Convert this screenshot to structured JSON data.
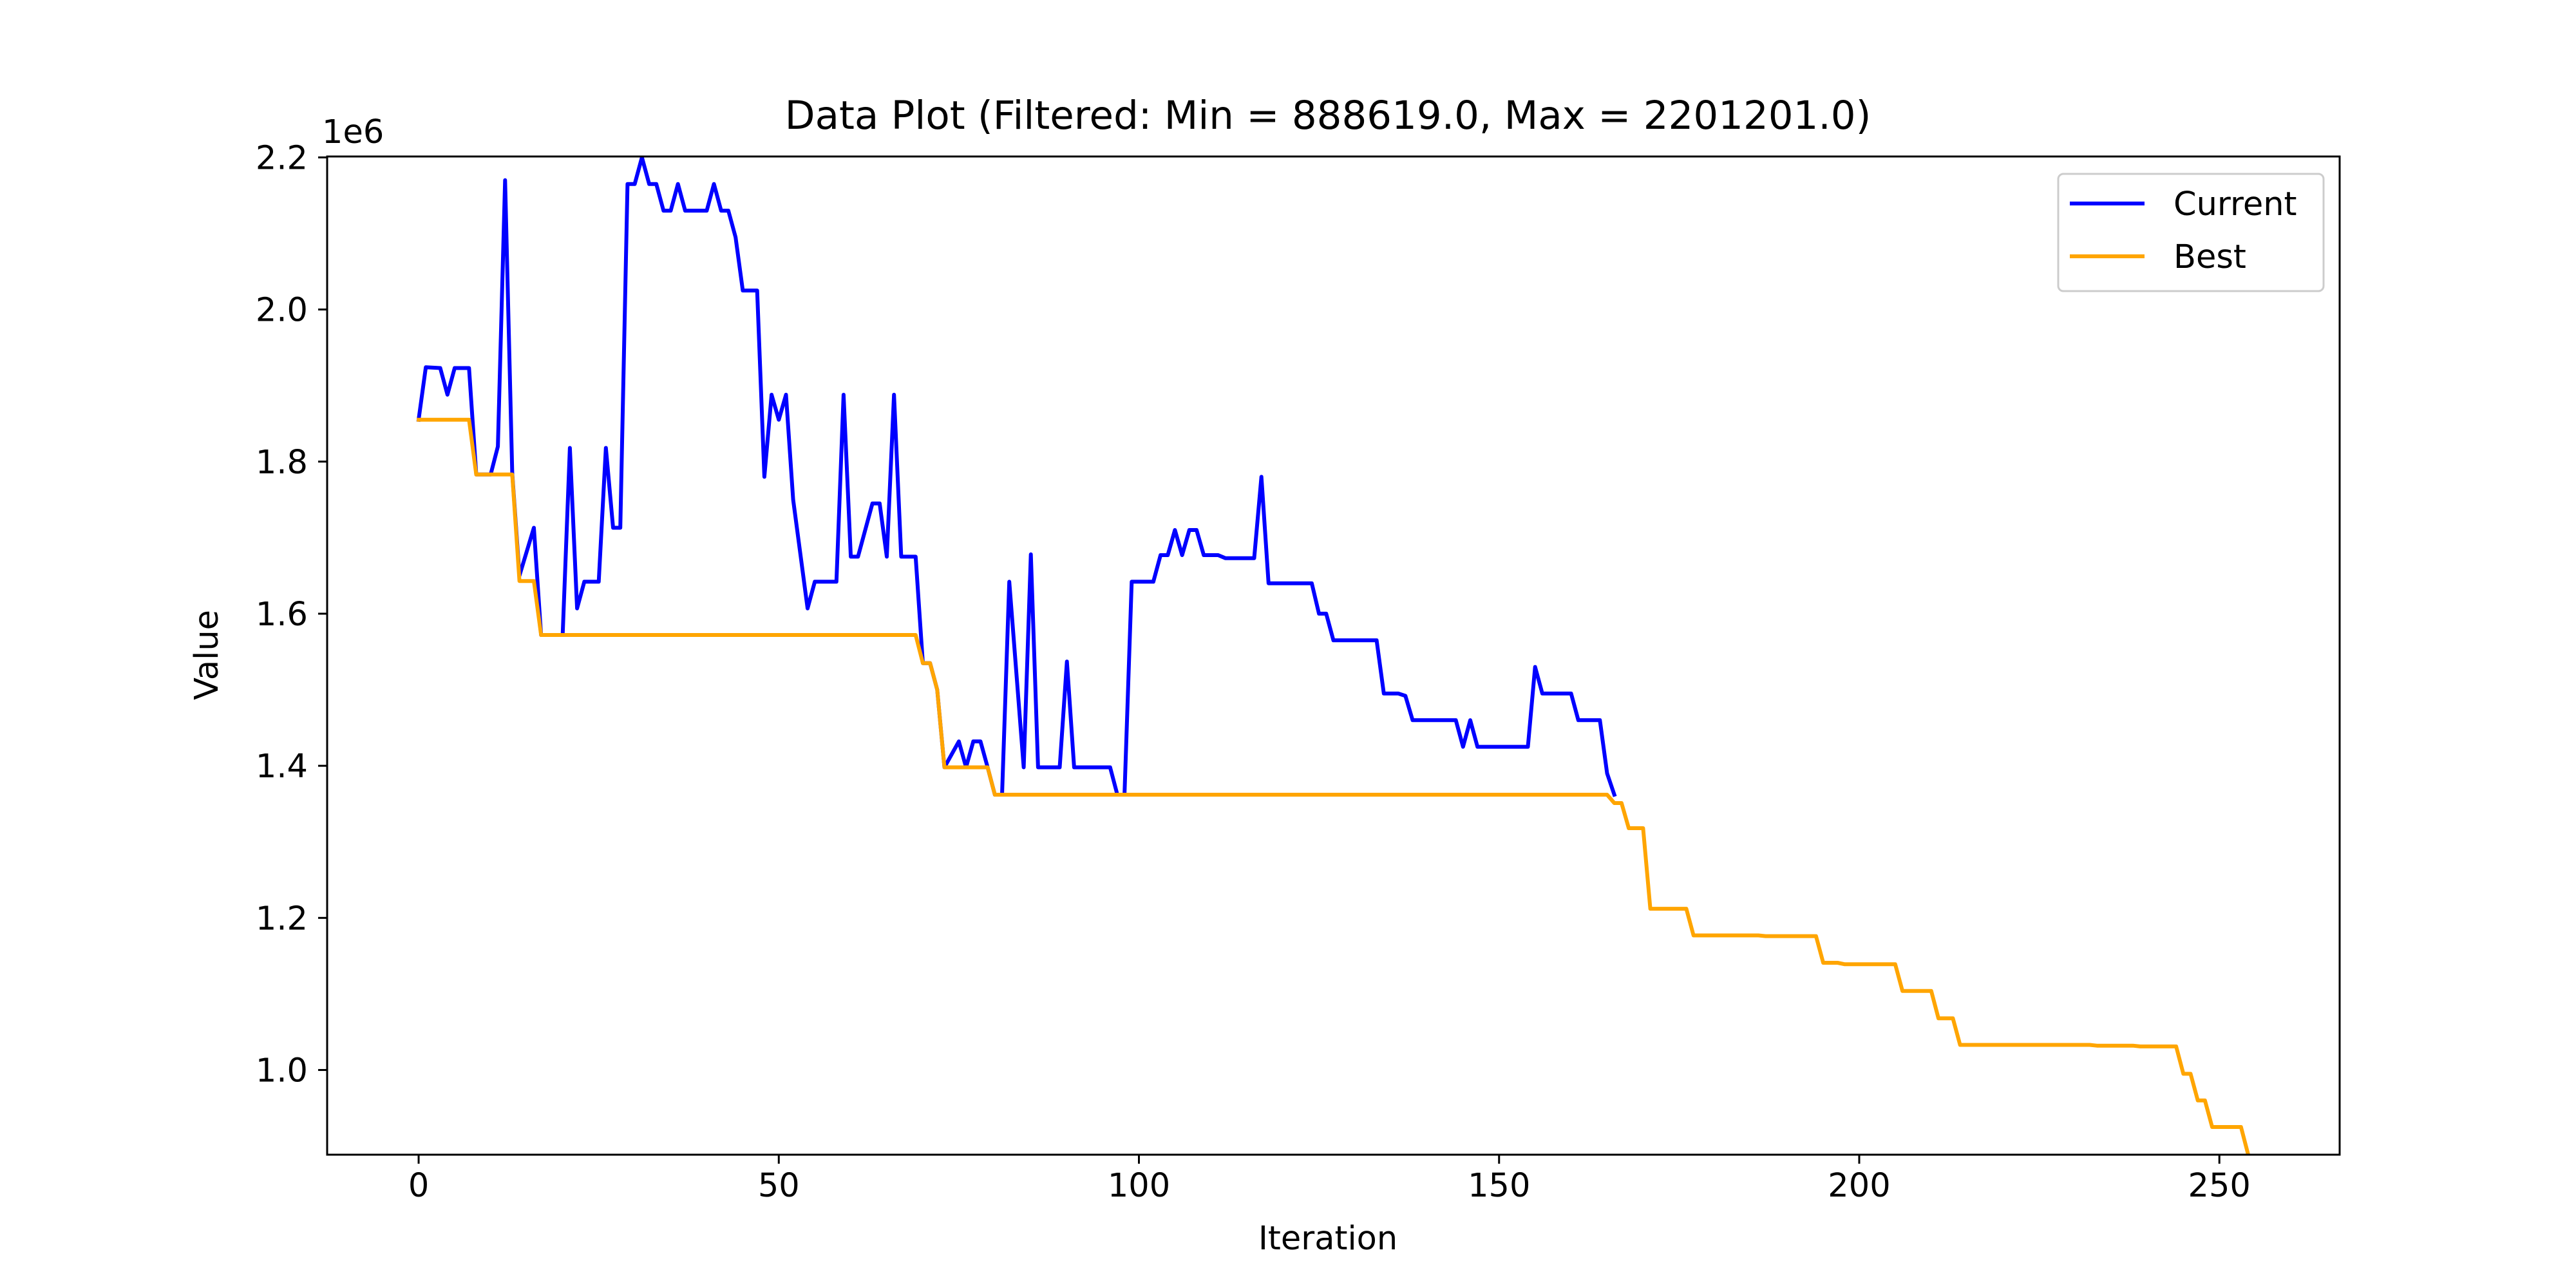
{
  "chart_data": {
    "type": "line",
    "title": "Data Plot (Filtered: Min = 888619.0, Max = 2201201.0)",
    "xlabel": "Iteration",
    "ylabel": "Value",
    "y_offset_text": "1e6",
    "xlim": [
      -12.7,
      266.7
    ],
    "ylim": [
      888619.0,
      2201201.0
    ],
    "x_ticks": [
      0,
      50,
      100,
      150,
      200,
      250
    ],
    "x_tick_labels": [
      "0",
      "50",
      "100",
      "150",
      "200",
      "250"
    ],
    "y_ticks": [
      1000000,
      1200000,
      1400000,
      1600000,
      1800000,
      2000000,
      2200000
    ],
    "y_tick_labels": [
      "1.0",
      "1.2",
      "1.4",
      "1.6",
      "1.8",
      "2.0",
      "2.2"
    ],
    "grid": false,
    "legend_position": "top-right",
    "series": [
      {
        "name": "Current",
        "color": "#0000ff",
        "points": [
          [
            0,
            1855000
          ],
          [
            1,
            1924000
          ],
          [
            3,
            1923000
          ],
          [
            4,
            1888000
          ],
          [
            5,
            1923000
          ],
          [
            7,
            1923000
          ],
          [
            8,
            1783000
          ],
          [
            10,
            1783000
          ],
          [
            11,
            1820000
          ],
          [
            12,
            2170000
          ],
          [
            13,
            1785000
          ],
          [
            14,
            1650000
          ],
          [
            16,
            1713000
          ],
          [
            17,
            1572000
          ],
          [
            20,
            1572000
          ],
          [
            21,
            1818000
          ],
          [
            22,
            1607000
          ],
          [
            23,
            1642000
          ],
          [
            25,
            1642000
          ],
          [
            26,
            1818000
          ],
          [
            27,
            1713000
          ],
          [
            28,
            1713000
          ],
          [
            29,
            2165000
          ],
          [
            30,
            2165000
          ],
          [
            31,
            2200000
          ],
          [
            32,
            2165000
          ],
          [
            33,
            2165000
          ],
          [
            34,
            2130000
          ],
          [
            35,
            2130000
          ],
          [
            36,
            2165000
          ],
          [
            37,
            2130000
          ],
          [
            40,
            2130000
          ],
          [
            41,
            2165000
          ],
          [
            42,
            2130000
          ],
          [
            43,
            2130000
          ],
          [
            44,
            2095000
          ],
          [
            45,
            2025000
          ],
          [
            47,
            2025000
          ],
          [
            48,
            1780000
          ],
          [
            49,
            1888000
          ],
          [
            50,
            1855000
          ],
          [
            51,
            1888000
          ],
          [
            52,
            1750000
          ],
          [
            54,
            1607000
          ],
          [
            55,
            1642000
          ],
          [
            58,
            1642000
          ],
          [
            59,
            1888000
          ],
          [
            60,
            1675000
          ],
          [
            61,
            1675000
          ],
          [
            63,
            1745000
          ],
          [
            64,
            1745000
          ],
          [
            65,
            1675000
          ],
          [
            66,
            1888000
          ],
          [
            67,
            1675000
          ],
          [
            69,
            1675000
          ],
          [
            70,
            1535000
          ],
          [
            71,
            1535000
          ],
          [
            72,
            1500000
          ],
          [
            73,
            1398000
          ],
          [
            75,
            1432000
          ],
          [
            76,
            1398000
          ],
          [
            77,
            1432000
          ],
          [
            78,
            1432000
          ],
          [
            79,
            1398000
          ],
          [
            80,
            1362000
          ],
          [
            81,
            1362000
          ],
          [
            82,
            1642000
          ],
          [
            84,
            1398000
          ],
          [
            85,
            1678000
          ],
          [
            86,
            1398000
          ],
          [
            89,
            1398000
          ],
          [
            90,
            1537000
          ],
          [
            91,
            1398000
          ],
          [
            96,
            1398000
          ],
          [
            97,
            1362000
          ],
          [
            98,
            1362000
          ],
          [
            99,
            1642000
          ],
          [
            102,
            1642000
          ],
          [
            103,
            1677000
          ],
          [
            104,
            1677000
          ],
          [
            105,
            1710000
          ],
          [
            106,
            1677000
          ],
          [
            107,
            1710000
          ],
          [
            108,
            1710000
          ],
          [
            109,
            1677000
          ],
          [
            111,
            1677000
          ],
          [
            112,
            1673000
          ],
          [
            116,
            1673000
          ],
          [
            117,
            1780000
          ],
          [
            118,
            1640000
          ],
          [
            124,
            1640000
          ],
          [
            125,
            1600000
          ],
          [
            126,
            1600000
          ],
          [
            127,
            1565000
          ],
          [
            133,
            1565000
          ],
          [
            134,
            1495000
          ],
          [
            136,
            1495000
          ],
          [
            137,
            1492000
          ],
          [
            138,
            1460000
          ],
          [
            144,
            1460000
          ],
          [
            145,
            1425000
          ],
          [
            146,
            1460000
          ],
          [
            147,
            1425000
          ],
          [
            154,
            1425000
          ],
          [
            155,
            1530000
          ],
          [
            156,
            1495000
          ],
          [
            160,
            1495000
          ],
          [
            161,
            1460000
          ],
          [
            164,
            1460000
          ],
          [
            165,
            1390000
          ],
          [
            166,
            1362000
          ]
        ]
      },
      {
        "name": "Best",
        "color": "#ffa500",
        "points": [
          [
            0,
            1855000
          ],
          [
            7,
            1855000
          ],
          [
            8,
            1783000
          ],
          [
            13,
            1783000
          ],
          [
            14,
            1643000
          ],
          [
            16,
            1643000
          ],
          [
            17,
            1572000
          ],
          [
            69,
            1572000
          ],
          [
            70,
            1535000
          ],
          [
            71,
            1535000
          ],
          [
            72,
            1500000
          ],
          [
            73,
            1398000
          ],
          [
            79,
            1398000
          ],
          [
            80,
            1362000
          ],
          [
            165,
            1362000
          ],
          [
            166,
            1351000
          ],
          [
            167,
            1351000
          ],
          [
            168,
            1318000
          ],
          [
            170,
            1318000
          ],
          [
            171,
            1212000
          ],
          [
            176,
            1212000
          ],
          [
            177,
            1177000
          ],
          [
            186,
            1177000
          ],
          [
            187,
            1176000
          ],
          [
            194,
            1176000
          ],
          [
            195,
            1141000
          ],
          [
            197,
            1141000
          ],
          [
            198,
            1139000
          ],
          [
            205,
            1139000
          ],
          [
            206,
            1104000
          ],
          [
            210,
            1104000
          ],
          [
            211,
            1068000
          ],
          [
            213,
            1068000
          ],
          [
            214,
            1033000
          ],
          [
            232,
            1033000
          ],
          [
            233,
            1032000
          ],
          [
            238,
            1032000
          ],
          [
            239,
            1031000
          ],
          [
            244,
            1031000
          ],
          [
            245,
            995000
          ],
          [
            246,
            995000
          ],
          [
            247,
            960000
          ],
          [
            248,
            960000
          ],
          [
            249,
            925000
          ],
          [
            253,
            925000
          ],
          [
            254,
            888619
          ]
        ]
      }
    ]
  }
}
